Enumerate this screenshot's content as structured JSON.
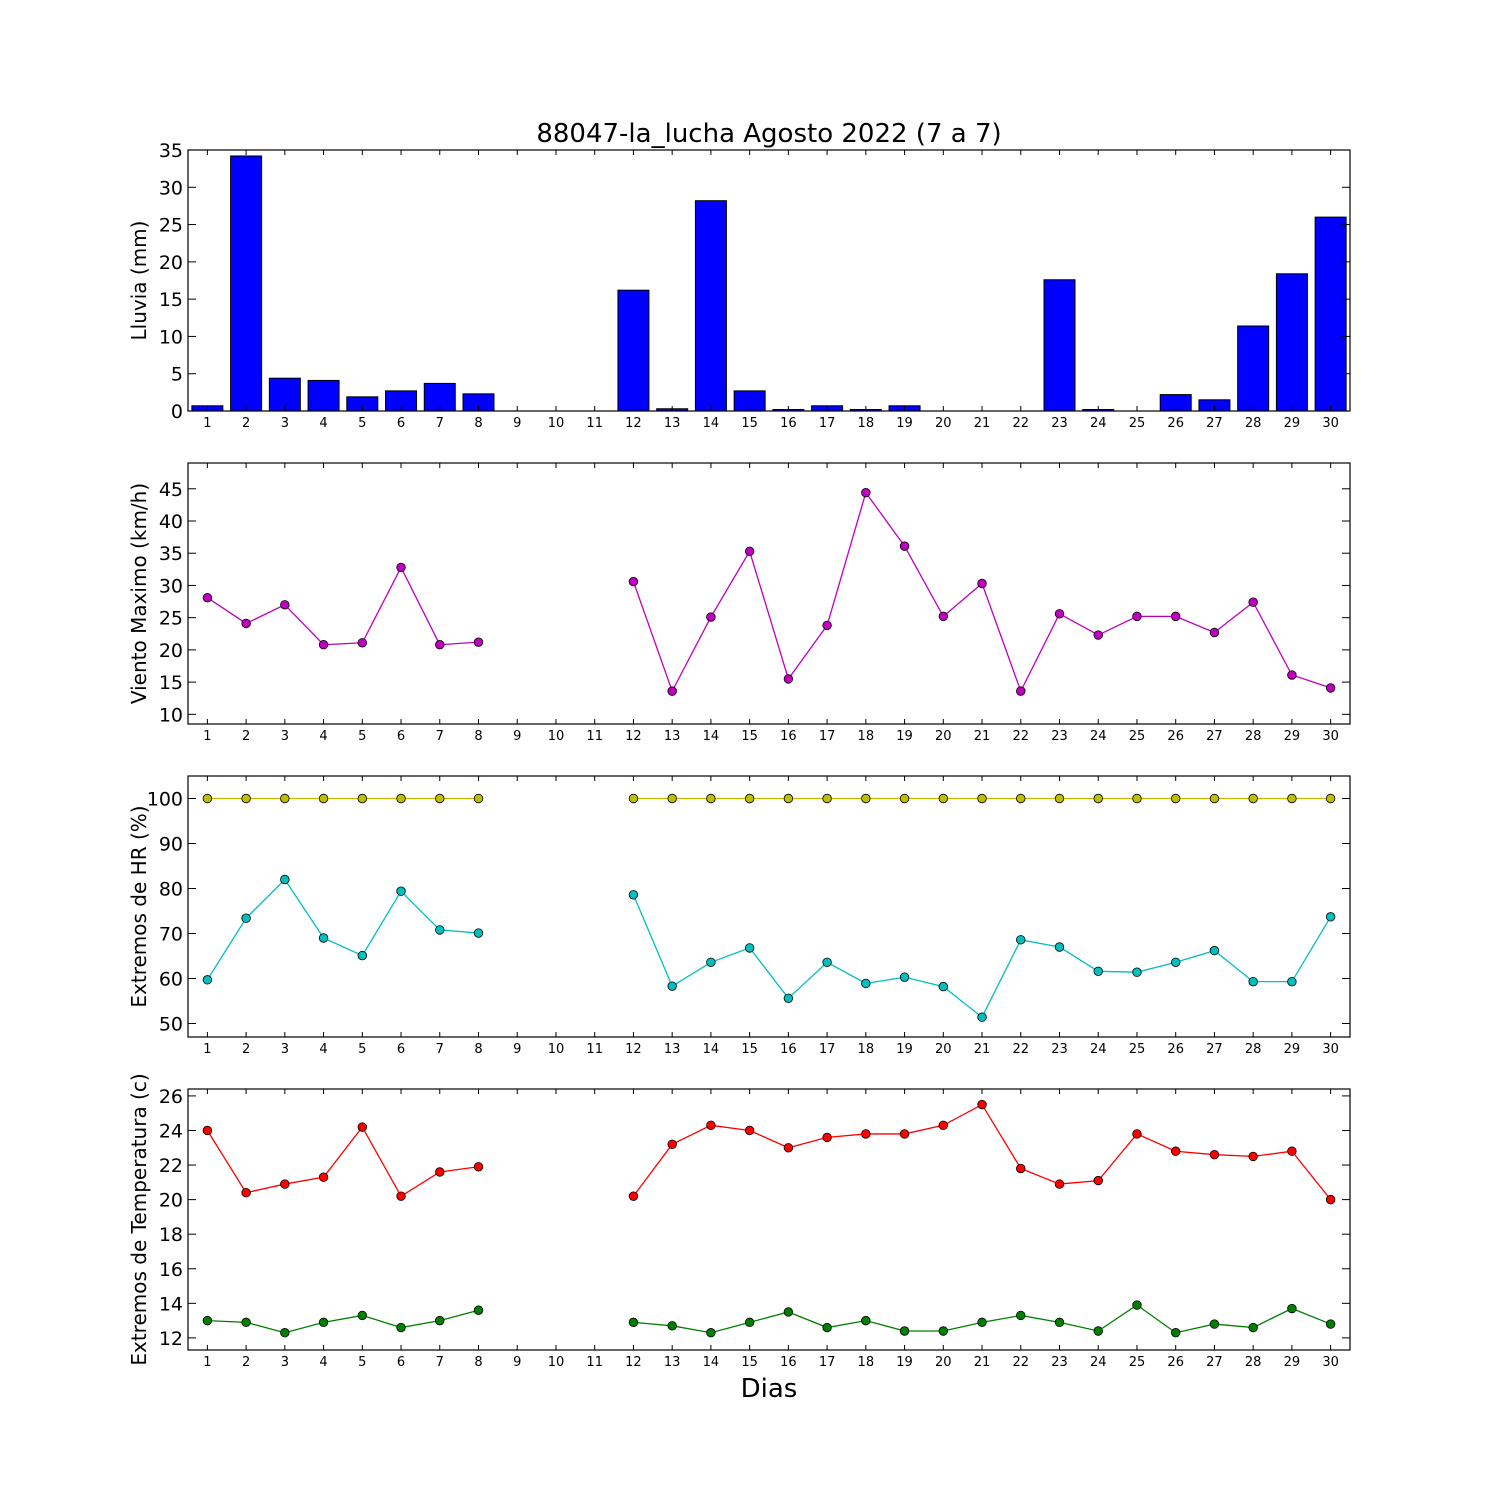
{
  "figure": {
    "title": "88047-la_lucha Agosto 2022  (7 a 7)",
    "xlabel": "Dias"
  },
  "chart_data": [
    {
      "type": "bar",
      "ylabel": "Lluvia (mm)",
      "categories": [
        1,
        2,
        3,
        4,
        5,
        6,
        7,
        8,
        9,
        10,
        11,
        12,
        13,
        14,
        15,
        16,
        17,
        18,
        19,
        20,
        21,
        22,
        23,
        24,
        25,
        26,
        27,
        28,
        29,
        30
      ],
      "ylim": [
        0,
        35
      ],
      "yticks": [
        0,
        5,
        10,
        15,
        20,
        25,
        30,
        35
      ],
      "series": [
        {
          "color": "#0000ff",
          "values": [
            0.7,
            34.2,
            4.4,
            4.1,
            1.9,
            2.7,
            3.7,
            2.3,
            0,
            0,
            0,
            16.2,
            0.3,
            28.2,
            2.7,
            0.2,
            0.7,
            0.2,
            0.7,
            0,
            0,
            0,
            17.6,
            0.2,
            0,
            2.2,
            1.5,
            11.4,
            18.4,
            26.0
          ]
        }
      ]
    },
    {
      "type": "line",
      "ylabel": "Viento Maximo (km/h)",
      "categories": [
        1,
        2,
        3,
        4,
        5,
        6,
        7,
        8,
        9,
        10,
        11,
        12,
        13,
        14,
        15,
        16,
        17,
        18,
        19,
        20,
        21,
        22,
        23,
        24,
        25,
        26,
        27,
        28,
        29,
        30
      ],
      "ylim": [
        8.5,
        49
      ],
      "yticks": [
        10,
        15,
        20,
        25,
        30,
        35,
        40,
        45
      ],
      "series": [
        {
          "color": "#bf00bf",
          "values": [
            28.1,
            24.1,
            27.0,
            20.8,
            21.1,
            32.8,
            20.8,
            21.2,
            null,
            null,
            null,
            30.6,
            13.6,
            25.1,
            35.3,
            15.5,
            23.8,
            44.4,
            36.1,
            25.2,
            30.3,
            13.6,
            25.6,
            22.3,
            25.2,
            25.2,
            22.7,
            27.4,
            16.1,
            14.1
          ]
        }
      ]
    },
    {
      "type": "line",
      "ylabel": "Extremos de HR (%)",
      "categories": [
        1,
        2,
        3,
        4,
        5,
        6,
        7,
        8,
        9,
        10,
        11,
        12,
        13,
        14,
        15,
        16,
        17,
        18,
        19,
        20,
        21,
        22,
        23,
        24,
        25,
        26,
        27,
        28,
        29,
        30
      ],
      "ylim": [
        47,
        105
      ],
      "yticks": [
        50,
        60,
        70,
        80,
        90,
        100
      ],
      "series": [
        {
          "color": "#bfbf00",
          "values": [
            100,
            100,
            100,
            100,
            100,
            100,
            100,
            100,
            null,
            null,
            null,
            100,
            100,
            100,
            100,
            100,
            100,
            100,
            100,
            100,
            100,
            100,
            100,
            100,
            100,
            100,
            100,
            100,
            100,
            100
          ]
        },
        {
          "color": "#00bfbf",
          "values": [
            59.7,
            73.4,
            82.0,
            69.0,
            65.1,
            79.4,
            70.8,
            70.1,
            null,
            null,
            null,
            78.6,
            58.3,
            63.6,
            66.8,
            55.6,
            63.6,
            58.9,
            60.3,
            58.2,
            51.4,
            68.6,
            67.0,
            61.6,
            61.4,
            63.6,
            66.2,
            59.3,
            59.3,
            73.7
          ]
        }
      ]
    },
    {
      "type": "line",
      "ylabel": "Extremos de Temperatura (c)",
      "categories": [
        1,
        2,
        3,
        4,
        5,
        6,
        7,
        8,
        9,
        10,
        11,
        12,
        13,
        14,
        15,
        16,
        17,
        18,
        19,
        20,
        21,
        22,
        23,
        24,
        25,
        26,
        27,
        28,
        29,
        30
      ],
      "ylim": [
        11.3,
        26.4
      ],
      "yticks": [
        12,
        14,
        16,
        18,
        20,
        22,
        24,
        26
      ],
      "series": [
        {
          "color": "#ff0000",
          "values": [
            24.0,
            20.4,
            20.9,
            21.3,
            24.2,
            20.2,
            21.6,
            21.9,
            null,
            null,
            null,
            20.2,
            23.2,
            24.3,
            24.0,
            23.0,
            23.6,
            23.8,
            23.8,
            24.3,
            25.5,
            21.8,
            20.9,
            21.1,
            23.8,
            22.8,
            22.6,
            22.5,
            22.8,
            20.0
          ]
        },
        {
          "color": "#008000",
          "values": [
            13.0,
            12.9,
            12.3,
            12.9,
            13.3,
            12.6,
            13.0,
            13.6,
            null,
            null,
            null,
            12.9,
            12.7,
            12.3,
            12.9,
            13.5,
            12.6,
            13.0,
            12.4,
            12.4,
            12.9,
            13.3,
            12.9,
            12.4,
            13.9,
            12.3,
            12.8,
            12.6,
            13.7,
            12.8
          ]
        }
      ]
    }
  ]
}
